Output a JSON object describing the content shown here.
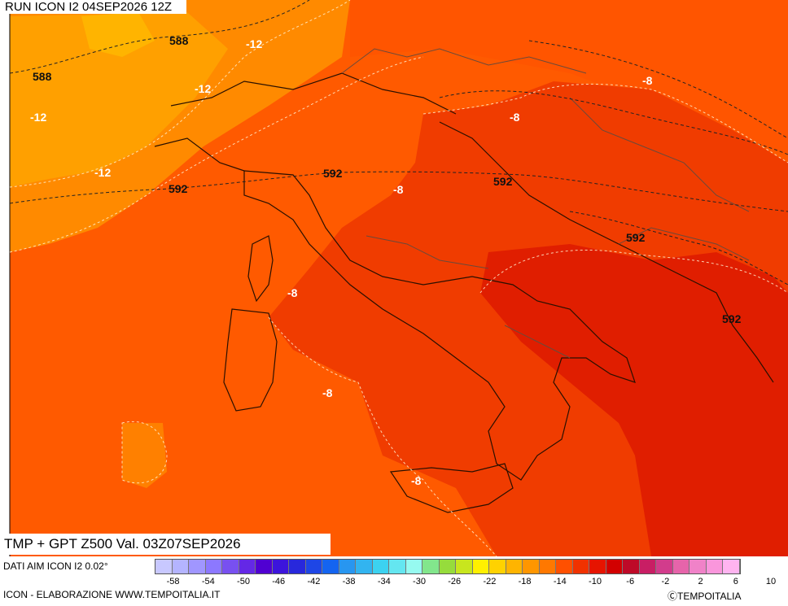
{
  "header": {
    "run": "RUN ICON I2 04SEP2026 12Z"
  },
  "footer": {
    "title": "TMP + GPT Z500 Val. 03Z07SEP2026",
    "data_source": "DATI AIM ICON I2 0.02°",
    "credit_left": "ICON - ELABORAZIONE WWW.TEMPOITALIA.IT",
    "credit_right": "ⒸTEMPOITALIA"
  },
  "map_labels": {
    "geopotential": [
      "588",
      "588",
      "592",
      "592",
      "592",
      "592",
      "592"
    ],
    "temperature": [
      "-12",
      "-12",
      "-12",
      "-12",
      "-8",
      "-8",
      "-8",
      "-8",
      "-8",
      "-8"
    ]
  },
  "legend": {
    "colors": [
      "#c8c8ff",
      "#b4b4ff",
      "#a096ff",
      "#8c78ff",
      "#7850f0",
      "#6428e6",
      "#5000d2",
      "#3c14dc",
      "#2828dc",
      "#1e46e6",
      "#1464f0",
      "#2896f0",
      "#32b4f0",
      "#3cd2f0",
      "#64e6f0",
      "#96faf0",
      "#82e68c",
      "#96dc3c",
      "#c8e61e",
      "#fff000",
      "#ffd200",
      "#ffb400",
      "#ff9600",
      "#ff7800",
      "#ff5000",
      "#f03200",
      "#e61400",
      "#d20000",
      "#be0a28",
      "#c81e64",
      "#d23c8c",
      "#e664aa",
      "#f082c8",
      "#fa96dc",
      "#ffb4f0"
    ],
    "ticks": [
      "-58",
      "-54",
      "-50",
      "-46",
      "-42",
      "-38",
      "-34",
      "-30",
      "-26",
      "-22",
      "-18",
      "-14",
      "-10",
      "-6",
      "-2",
      "2",
      "6",
      "10"
    ]
  }
}
